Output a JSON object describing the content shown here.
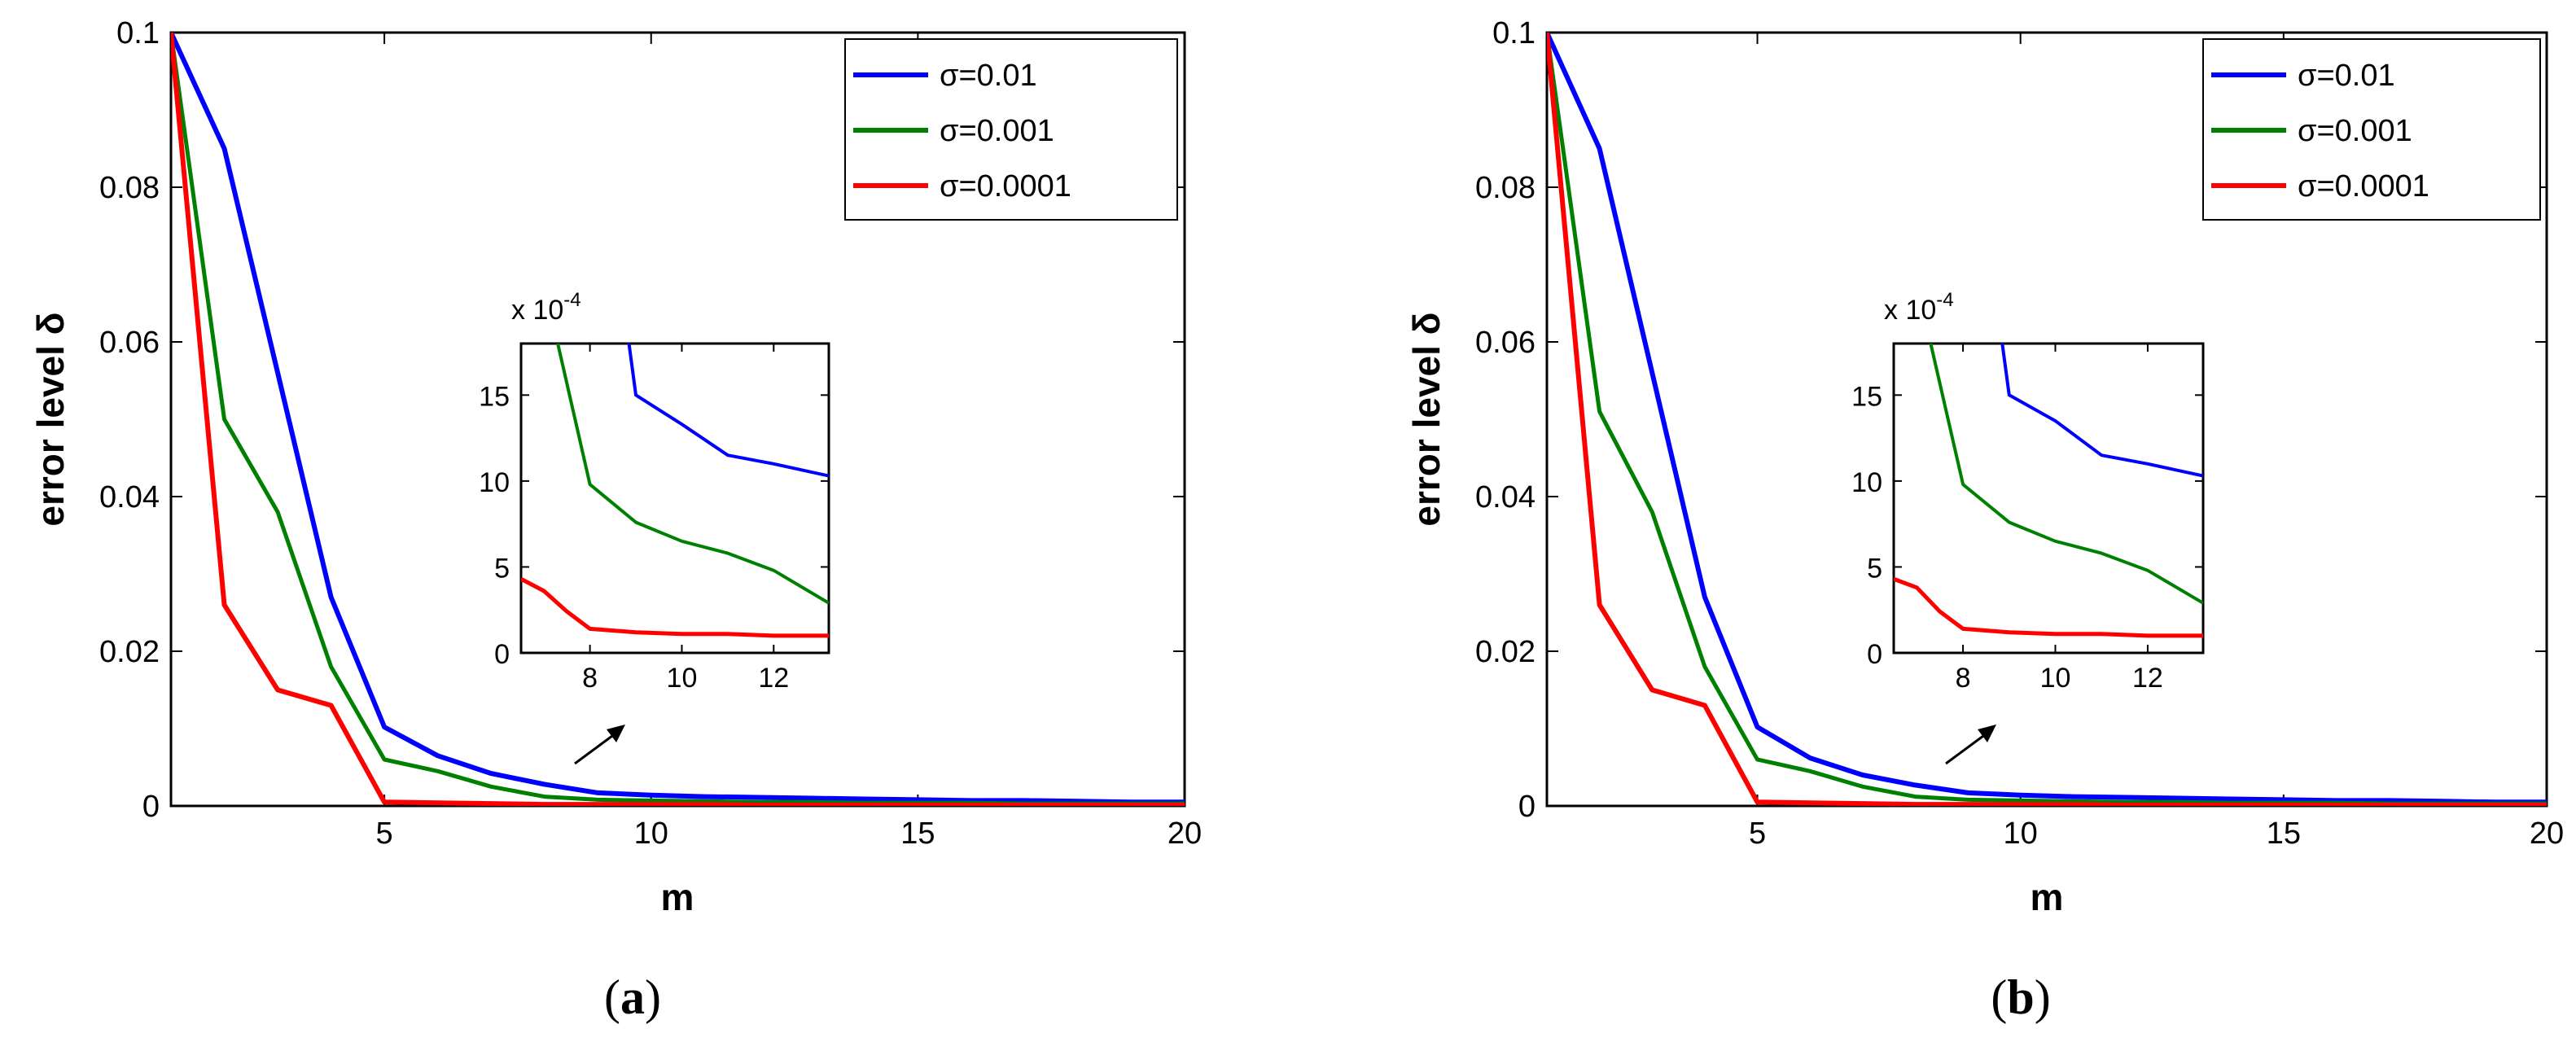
{
  "chart_data": [
    {
      "panel": "a",
      "panel_label": {
        "open": "(",
        "letter": "a",
        "close": ")"
      },
      "type": "line",
      "xlabel": "m",
      "ylabel": "error level δ",
      "xlim": [
        1,
        20
      ],
      "ylim": [
        0,
        0.1
      ],
      "xticks": [
        5,
        10,
        15,
        20
      ],
      "yticks": [
        0,
        0.02,
        0.04,
        0.06,
        0.08,
        0.1
      ],
      "xtick_labels": [
        "5",
        "10",
        "15",
        "20"
      ],
      "ytick_labels": [
        "0",
        "0.02",
        "0.04",
        "0.06",
        "0.08",
        "0.1"
      ],
      "legend_position": "top-right",
      "series": [
        {
          "name": "σ=0.01",
          "color": "#0000ff",
          "x": [
            1,
            2,
            3,
            4,
            5,
            6,
            7,
            8,
            9,
            10,
            11,
            12,
            13,
            14,
            15,
            16,
            17,
            18,
            19,
            20
          ],
          "y": [
            0.1,
            0.085,
            0.056,
            0.027,
            0.0102,
            0.0065,
            0.0042,
            0.0028,
            0.0017,
            0.0014,
            0.0012,
            0.0011,
            0.001,
            0.0009,
            0.0008,
            0.0007,
            0.0007,
            0.0006,
            0.0005,
            0.0005
          ]
        },
        {
          "name": "σ=0.001",
          "color": "#008000",
          "x": [
            1,
            2,
            3,
            4,
            5,
            6,
            7,
            8,
            9,
            10,
            11,
            12,
            13,
            14,
            15,
            16,
            17,
            18,
            19,
            20
          ],
          "y": [
            0.1,
            0.05,
            0.038,
            0.018,
            0.006,
            0.0045,
            0.0025,
            0.0012,
            0.0008,
            0.0007,
            0.0006,
            0.0005,
            0.0005,
            0.0004,
            0.0004,
            0.0004,
            0.0003,
            0.0003,
            0.0003,
            0.0003
          ]
        },
        {
          "name": "σ=0.0001",
          "color": "#ff0000",
          "x": [
            1,
            2,
            3,
            4,
            5,
            6,
            7,
            8,
            9,
            10,
            11,
            12,
            13,
            14,
            15,
            16,
            17,
            18,
            19,
            20
          ],
          "y": [
            0.1,
            0.026,
            0.015,
            0.013,
            0.0005,
            0.0004,
            0.0003,
            0.0002,
            0.0002,
            0.0002,
            0.0002,
            0.0001,
            0.0001,
            0.0001,
            0.0001,
            0.0001,
            0.0001,
            0.0001,
            0.0001,
            0.0001
          ]
        }
      ],
      "inset": {
        "exponent_label": "x 10",
        "exponent": "-4",
        "xlim": [
          6.5,
          13.2
        ],
        "ylim": [
          0,
          18
        ],
        "xticks": [
          8,
          10,
          12
        ],
        "yticks": [
          0,
          5,
          10,
          15
        ],
        "xtick_labels": [
          "8",
          "10",
          "12"
        ],
        "ytick_labels": [
          "0",
          "5",
          "10",
          "15"
        ],
        "series": [
          {
            "name": "σ=0.01",
            "color": "#0000ff",
            "x": [
              8.5,
              9,
              10,
              11,
              12,
              13.2
            ],
            "y": [
              25,
              15,
              13.3,
              11.5,
              11,
              10.3
            ]
          },
          {
            "name": "σ=0.001",
            "color": "#008000",
            "x": [
              7,
              7.3,
              8,
              9,
              10,
              11,
              12,
              13.2
            ],
            "y": [
              25,
              18,
              9.8,
              7.6,
              6.5,
              5.8,
              4.8,
              2.9
            ]
          },
          {
            "name": "σ=0.0001",
            "color": "#ff0000",
            "x": [
              6.5,
              7,
              7.5,
              8,
              9,
              10,
              11,
              12,
              13.2
            ],
            "y": [
              4.3,
              3.6,
              2.4,
              1.4,
              1.2,
              1.1,
              1.1,
              1.0,
              1.0
            ]
          }
        ]
      }
    },
    {
      "panel": "b",
      "panel_label": {
        "open": "(",
        "letter": "b",
        "close": ")"
      },
      "type": "line",
      "xlabel": "m",
      "ylabel": "error level δ",
      "xlim": [
        1,
        20
      ],
      "ylim": [
        0,
        0.1
      ],
      "xticks": [
        5,
        10,
        15,
        20
      ],
      "yticks": [
        0,
        0.02,
        0.04,
        0.06,
        0.08,
        0.1
      ],
      "xtick_labels": [
        "5",
        "10",
        "15",
        "20"
      ],
      "ytick_labels": [
        "0",
        "0.02",
        "0.04",
        "0.06",
        "0.08",
        "0.1"
      ],
      "legend_position": "top-right",
      "series": [
        {
          "name": "σ=0.01",
          "color": "#0000ff",
          "x": [
            1,
            2,
            3,
            4,
            5,
            6,
            7,
            8,
            9,
            10,
            11,
            12,
            13,
            14,
            15,
            16,
            17,
            18,
            19,
            20
          ],
          "y": [
            0.1,
            0.085,
            0.056,
            0.027,
            0.0102,
            0.0062,
            0.004,
            0.0027,
            0.0017,
            0.0014,
            0.0012,
            0.0011,
            0.001,
            0.0009,
            0.0008,
            0.0007,
            0.0007,
            0.0006,
            0.0005,
            0.0005
          ]
        },
        {
          "name": "σ=0.001",
          "color": "#008000",
          "x": [
            1,
            2,
            3,
            4,
            5,
            6,
            7,
            8,
            9,
            10,
            11,
            12,
            13,
            14,
            15,
            16,
            17,
            18,
            19,
            20
          ],
          "y": [
            0.1,
            0.051,
            0.038,
            0.018,
            0.006,
            0.0045,
            0.0025,
            0.0012,
            0.0008,
            0.0007,
            0.0006,
            0.0005,
            0.0005,
            0.0004,
            0.0004,
            0.0004,
            0.0003,
            0.0003,
            0.0003,
            0.0003
          ]
        },
        {
          "name": "σ=0.0001",
          "color": "#ff0000",
          "x": [
            1,
            2,
            3,
            4,
            5,
            6,
            7,
            8,
            9,
            10,
            11,
            12,
            13,
            14,
            15,
            16,
            17,
            18,
            19,
            20
          ],
          "y": [
            0.1,
            0.026,
            0.015,
            0.013,
            0.0005,
            0.0004,
            0.0003,
            0.0002,
            0.0002,
            0.0002,
            0.0002,
            0.0001,
            0.0001,
            0.0001,
            0.0001,
            0.0001,
            0.0001,
            0.0001,
            0.0001,
            0.0001
          ]
        }
      ],
      "inset": {
        "exponent_label": "x 10",
        "exponent": "-4",
        "xlim": [
          6.5,
          13.2
        ],
        "ylim": [
          0,
          18
        ],
        "xticks": [
          8,
          10,
          12
        ],
        "yticks": [
          0,
          5,
          10,
          15
        ],
        "xtick_labels": [
          "8",
          "10",
          "12"
        ],
        "ytick_labels": [
          "0",
          "5",
          "10",
          "15"
        ],
        "series": [
          {
            "name": "σ=0.01",
            "color": "#0000ff",
            "x": [
              8.5,
              9,
              10,
              11,
              12,
              13.2
            ],
            "y": [
              25,
              15,
              13.5,
              11.5,
              11,
              10.3
            ]
          },
          {
            "name": "σ=0.001",
            "color": "#008000",
            "x": [
              7,
              7.3,
              8,
              9,
              10,
              11,
              12,
              13.2
            ],
            "y": [
              25,
              18,
              9.8,
              7.6,
              6.5,
              5.8,
              4.8,
              2.9
            ]
          },
          {
            "name": "σ=0.0001",
            "color": "#ff0000",
            "x": [
              6.5,
              7,
              7.5,
              8,
              9,
              10,
              11,
              12,
              13.2
            ],
            "y": [
              4.3,
              3.8,
              2.4,
              1.4,
              1.2,
              1.1,
              1.1,
              1.0,
              1.0
            ]
          }
        ]
      }
    }
  ]
}
